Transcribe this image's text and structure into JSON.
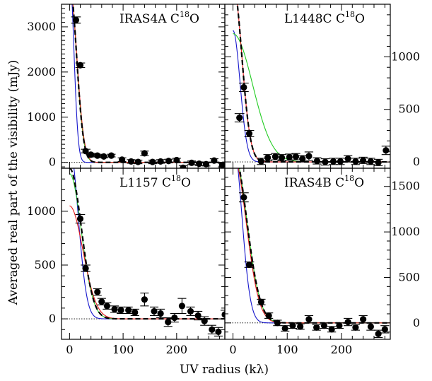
{
  "xlabel": "UV radius (kλ)",
  "ylabel": "Averaged real part of the visibility (mJy)",
  "colors": {
    "blue": "#1515cc",
    "red": "#e41a1a",
    "green": "#22cc22",
    "black_dashed": "#000000",
    "points": "#000000"
  },
  "chart_data": [
    {
      "type": "scatter",
      "panel": "top-left",
      "title": {
        "name": "IRAS4A C",
        "sup": "18",
        "tail": "O"
      },
      "y_axis_side": "left",
      "xlim": [
        -15,
        290
      ],
      "ylim": [
        -130,
        3500
      ],
      "xticks": [
        0,
        100,
        200
      ],
      "yticks": [
        0,
        1000,
        2000,
        3000
      ],
      "points": [
        {
          "x": 12,
          "y": 3150,
          "err": 70,
          "xerr": 9
        },
        {
          "x": 20,
          "y": 2150,
          "err": 50,
          "xerr": 9
        },
        {
          "x": 30,
          "y": 250,
          "err": 40,
          "xerr": 9
        },
        {
          "x": 40,
          "y": 170,
          "err": 30,
          "xerr": 8
        },
        {
          "x": 52,
          "y": 150,
          "err": 30,
          "xerr": 8
        },
        {
          "x": 64,
          "y": 130,
          "err": 30,
          "xerr": 8
        },
        {
          "x": 78,
          "y": 150,
          "err": 30,
          "xerr": 8
        },
        {
          "x": 98,
          "y": 60,
          "err": 40,
          "xerr": 8
        },
        {
          "x": 115,
          "y": 20,
          "err": 40,
          "xerr": 8
        },
        {
          "x": 128,
          "y": 10,
          "err": 40,
          "xerr": 8
        },
        {
          "x": 140,
          "y": 200,
          "err": 50,
          "xerr": 8
        },
        {
          "x": 155,
          "y": 10,
          "err": 40,
          "xerr": 8
        },
        {
          "x": 170,
          "y": 20,
          "err": 40,
          "xerr": 8
        },
        {
          "x": 185,
          "y": 30,
          "err": 40,
          "xerr": 8
        },
        {
          "x": 200,
          "y": 50,
          "err": 40,
          "xerr": 8
        },
        {
          "x": 212,
          "y": -120,
          "err": 50,
          "xerr": 8
        },
        {
          "x": 228,
          "y": -10,
          "err": 40,
          "xerr": 8
        },
        {
          "x": 242,
          "y": -30,
          "err": 40,
          "xerr": 8
        },
        {
          "x": 255,
          "y": -40,
          "err": 40,
          "xerr": 8
        },
        {
          "x": 270,
          "y": 40,
          "err": 40,
          "xerr": 8
        },
        {
          "x": 285,
          "y": -60,
          "err": 40,
          "xerr": 8
        }
      ],
      "models": [
        {
          "color": "blue",
          "dashed": false,
          "amp": 4200,
          "sigma": 8
        },
        {
          "color": "green",
          "dashed": false,
          "amp": 3950,
          "sigma": 13
        },
        {
          "color": "red",
          "dashed": false,
          "amp": 3900,
          "sigma": 13.5
        },
        {
          "color": "black_dashed",
          "dashed": true,
          "amp": 3950,
          "sigma": 13
        }
      ]
    },
    {
      "type": "scatter",
      "panel": "top-right",
      "title": {
        "name": "L1448C C",
        "sup": "18",
        "tail": "O"
      },
      "y_axis_side": "right",
      "xlim": [
        -15,
        290
      ],
      "ylim": [
        -60,
        1500
      ],
      "xticks": [
        0,
        100,
        200
      ],
      "yticks": [
        0,
        500,
        1000
      ],
      "points": [
        {
          "x": 12,
          "y": 420,
          "err": 40,
          "xerr": 9
        },
        {
          "x": 20,
          "y": 710,
          "err": 40,
          "xerr": 9
        },
        {
          "x": 30,
          "y": 270,
          "err": 30,
          "xerr": 9
        },
        {
          "x": 52,
          "y": 5,
          "err": 30,
          "xerr": 8
        },
        {
          "x": 64,
          "y": 40,
          "err": 30,
          "xerr": 8
        },
        {
          "x": 78,
          "y": 50,
          "err": 30,
          "xerr": 8
        },
        {
          "x": 90,
          "y": 40,
          "err": 30,
          "xerr": 8
        },
        {
          "x": 104,
          "y": 45,
          "err": 30,
          "xerr": 8
        },
        {
          "x": 116,
          "y": 50,
          "err": 30,
          "xerr": 8
        },
        {
          "x": 128,
          "y": 30,
          "err": 30,
          "xerr": 8
        },
        {
          "x": 140,
          "y": 55,
          "err": 40,
          "xerr": 8
        },
        {
          "x": 155,
          "y": 10,
          "err": 30,
          "xerr": 8
        },
        {
          "x": 170,
          "y": 0,
          "err": 30,
          "xerr": 8
        },
        {
          "x": 185,
          "y": 5,
          "err": 30,
          "xerr": 8
        },
        {
          "x": 198,
          "y": 5,
          "err": 30,
          "xerr": 8
        },
        {
          "x": 212,
          "y": 30,
          "err": 30,
          "xerr": 8
        },
        {
          "x": 226,
          "y": 5,
          "err": 30,
          "xerr": 8
        },
        {
          "x": 240,
          "y": 15,
          "err": 30,
          "xerr": 8
        },
        {
          "x": 254,
          "y": 5,
          "err": 30,
          "xerr": 8
        },
        {
          "x": 268,
          "y": -5,
          "err": 30,
          "xerr": 8
        },
        {
          "x": 282,
          "y": 110,
          "err": 40,
          "xerr": 8
        }
      ],
      "models": [
        {
          "color": "blue",
          "dashed": false,
          "amp": 1250,
          "sigma": 13
        },
        {
          "color": "green",
          "dashed": false,
          "amp": 1220,
          "sigma": 36
        },
        {
          "color": "red",
          "dashed": false,
          "amp": 1700,
          "sigma": 16
        },
        {
          "color": "black_dashed",
          "dashed": true,
          "amp": 1700,
          "sigma": 16
        }
      ]
    },
    {
      "type": "scatter",
      "panel": "bottom-left",
      "title": {
        "name": "L1157 C",
        "sup": "18",
        "tail": "O"
      },
      "y_axis_side": "left",
      "xlim": [
        -15,
        290
      ],
      "ylim": [
        -190,
        1400
      ],
      "xticks": [
        0,
        100,
        200
      ],
      "yticks": [
        0,
        500,
        1000
      ],
      "points": [
        {
          "x": 20,
          "y": 930,
          "err": 40,
          "xerr": 9
        },
        {
          "x": 30,
          "y": 470,
          "err": 30,
          "xerr": 9
        },
        {
          "x": 52,
          "y": 250,
          "err": 30,
          "xerr": 8
        },
        {
          "x": 60,
          "y": 160,
          "err": 30,
          "xerr": 8
        },
        {
          "x": 70,
          "y": 120,
          "err": 30,
          "xerr": 8
        },
        {
          "x": 84,
          "y": 90,
          "err": 30,
          "xerr": 8
        },
        {
          "x": 96,
          "y": 80,
          "err": 30,
          "xerr": 8
        },
        {
          "x": 110,
          "y": 80,
          "err": 30,
          "xerr": 8
        },
        {
          "x": 122,
          "y": 60,
          "err": 30,
          "xerr": 8
        },
        {
          "x": 140,
          "y": 180,
          "err": 60,
          "xerr": 8
        },
        {
          "x": 158,
          "y": 70,
          "err": 40,
          "xerr": 8
        },
        {
          "x": 170,
          "y": 50,
          "err": 40,
          "xerr": 8
        },
        {
          "x": 184,
          "y": -30,
          "err": 40,
          "xerr": 8
        },
        {
          "x": 196,
          "y": 10,
          "err": 40,
          "xerr": 8
        },
        {
          "x": 210,
          "y": 120,
          "err": 70,
          "xerr": 8
        },
        {
          "x": 226,
          "y": 70,
          "err": 40,
          "xerr": 8
        },
        {
          "x": 240,
          "y": 30,
          "err": 40,
          "xerr": 8
        },
        {
          "x": 252,
          "y": -20,
          "err": 40,
          "xerr": 8
        },
        {
          "x": 266,
          "y": -100,
          "err": 40,
          "xerr": 8
        },
        {
          "x": 278,
          "y": -120,
          "err": 40,
          "xerr": 8
        },
        {
          "x": 290,
          "y": 40,
          "err": 40,
          "xerr": 8
        }
      ],
      "models": [
        {
          "color": "blue",
          "dashed": false,
          "amp": 1600,
          "sigma": 16
        },
        {
          "color": "green",
          "dashed": false,
          "amp": 1350,
          "sigma": 22
        },
        {
          "color": "red",
          "dashed": false,
          "amp": 1050,
          "sigma": 25
        },
        {
          "color": "black_dashed",
          "dashed": true,
          "amp": 1400,
          "sigma": 22
        }
      ]
    },
    {
      "type": "scatter",
      "panel": "bottom-right",
      "title": {
        "name": "IRAS4B C",
        "sup": "18",
        "tail": "O"
      },
      "y_axis_side": "right",
      "xlim": [
        -15,
        290
      ],
      "ylim": [
        -180,
        1700
      ],
      "xticks": [
        0,
        100,
        200
      ],
      "yticks": [
        0,
        500,
        1000,
        1500
      ],
      "points": [
        {
          "x": 20,
          "y": 1380,
          "err": 50,
          "xerr": 9
        },
        {
          "x": 30,
          "y": 640,
          "err": 30,
          "xerr": 9
        },
        {
          "x": 52,
          "y": 230,
          "err": 30,
          "xerr": 8
        },
        {
          "x": 66,
          "y": 80,
          "err": 30,
          "xerr": 8
        },
        {
          "x": 82,
          "y": 0,
          "err": 30,
          "xerr": 8
        },
        {
          "x": 96,
          "y": -60,
          "err": 30,
          "xerr": 8
        },
        {
          "x": 110,
          "y": -30,
          "err": 30,
          "xerr": 8
        },
        {
          "x": 124,
          "y": -40,
          "err": 30,
          "xerr": 8
        },
        {
          "x": 140,
          "y": 40,
          "err": 40,
          "xerr": 8
        },
        {
          "x": 154,
          "y": -50,
          "err": 30,
          "xerr": 8
        },
        {
          "x": 168,
          "y": -30,
          "err": 30,
          "xerr": 8
        },
        {
          "x": 182,
          "y": -70,
          "err": 30,
          "xerr": 8
        },
        {
          "x": 196,
          "y": -30,
          "err": 30,
          "xerr": 8
        },
        {
          "x": 212,
          "y": 10,
          "err": 40,
          "xerr": 8
        },
        {
          "x": 226,
          "y": -50,
          "err": 30,
          "xerr": 8
        },
        {
          "x": 240,
          "y": 40,
          "err": 40,
          "xerr": 8
        },
        {
          "x": 254,
          "y": -40,
          "err": 40,
          "xerr": 8
        },
        {
          "x": 268,
          "y": -120,
          "err": 40,
          "xerr": 8
        },
        {
          "x": 280,
          "y": -70,
          "err": 40,
          "xerr": 8
        }
      ],
      "models": [
        {
          "color": "blue",
          "dashed": false,
          "amp": 2000,
          "sigma": 16
        },
        {
          "color": "green",
          "dashed": false,
          "amp": 1900,
          "sigma": 25
        },
        {
          "color": "red",
          "dashed": false,
          "amp": 1850,
          "sigma": 24
        },
        {
          "color": "black_dashed",
          "dashed": true,
          "amp": 1900,
          "sigma": 25
        }
      ]
    }
  ]
}
